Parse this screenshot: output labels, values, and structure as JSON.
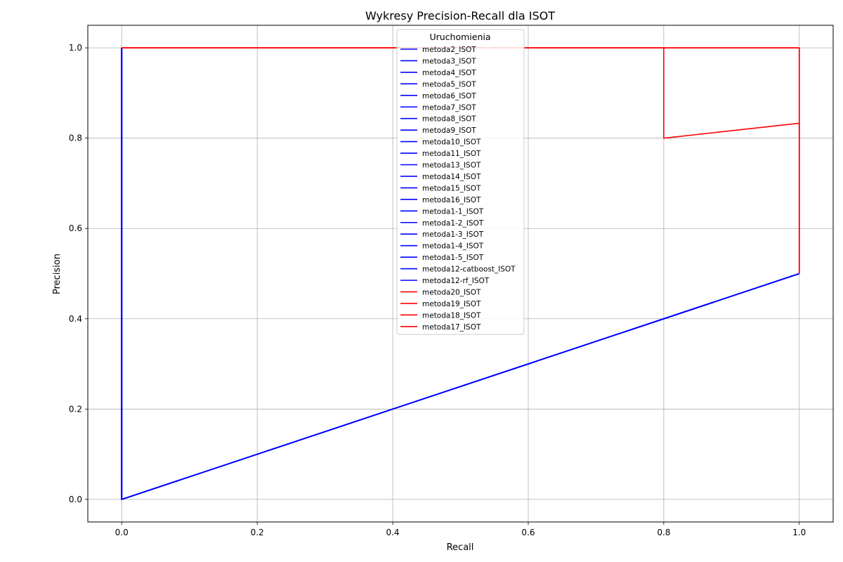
{
  "chart_data": {
    "type": "line",
    "title": "Wykresy Precision-Recall dla ISOT",
    "xlabel": "Recall",
    "ylabel": "Precision",
    "xlim": [
      -0.05,
      1.05
    ],
    "ylim": [
      -0.05,
      1.05
    ],
    "xticks": [
      "0.0",
      "0.2",
      "0.4",
      "0.6",
      "0.8",
      "1.0"
    ],
    "yticks": [
      "0.0",
      "0.2",
      "0.4",
      "0.6",
      "0.8",
      "1.0"
    ],
    "grid": true,
    "legend": {
      "title": "Uruchomienia",
      "placement": "top-center"
    },
    "colors": {
      "blue_group": "#0000ff",
      "red_group": "#ff0000",
      "grid": "#b0b0b0"
    },
    "series": [
      {
        "name": "metoda2_ISOT",
        "color": "#0000ff",
        "x": [
          0,
          0,
          1
        ],
        "y": [
          1,
          0,
          0.5
        ]
      },
      {
        "name": "metoda3_ISOT",
        "color": "#0000ff",
        "x": [
          0,
          0,
          1
        ],
        "y": [
          1,
          0,
          0.5
        ]
      },
      {
        "name": "metoda4_ISOT",
        "color": "#0000ff",
        "x": [
          0,
          0,
          1
        ],
        "y": [
          1,
          0,
          0.5
        ]
      },
      {
        "name": "metoda5_ISOT",
        "color": "#0000ff",
        "x": [
          0,
          0,
          1
        ],
        "y": [
          1,
          0,
          0.5
        ]
      },
      {
        "name": "metoda6_ISOT",
        "color": "#0000ff",
        "x": [
          0,
          0,
          1
        ],
        "y": [
          1,
          0,
          0.5
        ]
      },
      {
        "name": "metoda7_ISOT",
        "color": "#0000ff",
        "x": [
          0,
          0,
          1
        ],
        "y": [
          1,
          0,
          0.5
        ]
      },
      {
        "name": "metoda8_ISOT",
        "color": "#0000ff",
        "x": [
          0,
          0,
          1
        ],
        "y": [
          1,
          0,
          0.5
        ]
      },
      {
        "name": "metoda9_ISOT",
        "color": "#0000ff",
        "x": [
          0,
          0,
          1
        ],
        "y": [
          1,
          0,
          0.5
        ]
      },
      {
        "name": "metoda10_ISOT",
        "color": "#0000ff",
        "x": [
          0,
          0,
          1
        ],
        "y": [
          1,
          0,
          0.5
        ]
      },
      {
        "name": "metoda11_ISOT",
        "color": "#0000ff",
        "x": [
          0,
          0,
          1
        ],
        "y": [
          1,
          0,
          0.5
        ]
      },
      {
        "name": "metoda13_ISOT",
        "color": "#0000ff",
        "x": [
          0,
          0,
          1
        ],
        "y": [
          1,
          0,
          0.5
        ]
      },
      {
        "name": "metoda14_ISOT",
        "color": "#0000ff",
        "x": [
          0,
          0,
          1
        ],
        "y": [
          1,
          0,
          0.5
        ]
      },
      {
        "name": "metoda15_ISOT",
        "color": "#0000ff",
        "x": [
          0,
          0,
          1
        ],
        "y": [
          1,
          0,
          0.5
        ]
      },
      {
        "name": "metoda16_ISOT",
        "color": "#0000ff",
        "x": [
          0,
          0,
          1
        ],
        "y": [
          1,
          0,
          0.5
        ]
      },
      {
        "name": "metoda1-1_ISOT",
        "color": "#0000ff",
        "x": [
          0,
          0,
          1
        ],
        "y": [
          1,
          0,
          0.5
        ]
      },
      {
        "name": "metoda1-2_ISOT",
        "color": "#0000ff",
        "x": [
          0,
          0,
          1
        ],
        "y": [
          1,
          0,
          0.5
        ]
      },
      {
        "name": "metoda1-3_ISOT",
        "color": "#0000ff",
        "x": [
          0,
          0,
          1
        ],
        "y": [
          1,
          0,
          0.5
        ]
      },
      {
        "name": "metoda1-4_ISOT",
        "color": "#0000ff",
        "x": [
          0,
          0,
          1
        ],
        "y": [
          1,
          0,
          0.5
        ]
      },
      {
        "name": "metoda1-5_ISOT",
        "color": "#0000ff",
        "x": [
          0,
          0,
          1
        ],
        "y": [
          1,
          0,
          0.5
        ]
      },
      {
        "name": "metoda12-catboost_ISOT",
        "color": "#0000ff",
        "x": [
          0,
          0,
          1
        ],
        "y": [
          1,
          0,
          0.5
        ]
      },
      {
        "name": "metoda12-rf_ISOT",
        "color": "#0000ff",
        "x": [
          0,
          0,
          1
        ],
        "y": [
          1,
          0,
          0.5
        ]
      },
      {
        "name": "metoda20_ISOT",
        "color": "#ff0000",
        "x": [
          0,
          1,
          1
        ],
        "y": [
          1,
          1,
          0.5
        ]
      },
      {
        "name": "metoda19_ISOT",
        "color": "#ff0000",
        "x": [
          0,
          0.8,
          0.8,
          1,
          1
        ],
        "y": [
          1,
          1,
          0.8,
          0.833,
          0.5
        ]
      },
      {
        "name": "metoda18_ISOT",
        "color": "#ff0000",
        "x": [
          0,
          1,
          1
        ],
        "y": [
          1,
          1,
          0.5
        ]
      },
      {
        "name": "metoda17_ISOT",
        "color": "#ff0000",
        "x": [
          0,
          1,
          1
        ],
        "y": [
          1,
          1,
          0.5
        ]
      }
    ]
  }
}
